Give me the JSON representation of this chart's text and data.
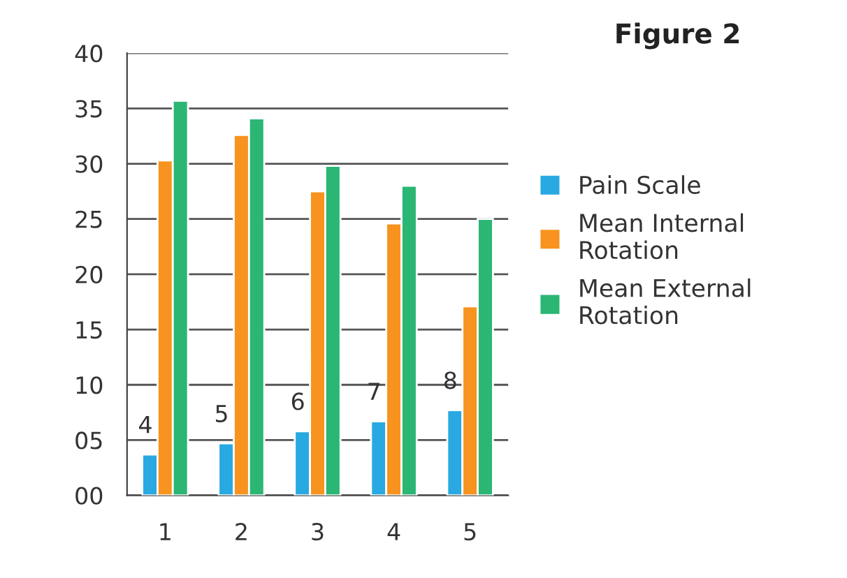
{
  "chart_data": {
    "type": "bar",
    "title": "Figure 2",
    "categories": [
      "1",
      "2",
      "3",
      "4",
      "5"
    ],
    "series": [
      {
        "name": "Pain Scale",
        "color": "#29a9e1",
        "values": [
          3.7,
          4.7,
          5.8,
          6.7,
          7.7
        ],
        "value_labels": [
          "4",
          "5",
          "6",
          "7",
          "8"
        ]
      },
      {
        "name": "Mean Internal\nRotation",
        "color": "#f7931e",
        "values": [
          30.3,
          32.6,
          27.5,
          24.6,
          17.1
        ]
      },
      {
        "name": "Mean External\nRotation",
        "color": "#2bb673",
        "values": [
          35.7,
          34.1,
          29.8,
          28.0,
          25.0
        ]
      }
    ],
    "ylim": [
      0,
      40
    ],
    "yticks": [
      {
        "value": 0,
        "label": "00"
      },
      {
        "value": 5,
        "label": "05"
      },
      10,
      15,
      20,
      25,
      30,
      35,
      40
    ],
    "grid": "y",
    "legend": "right"
  }
}
